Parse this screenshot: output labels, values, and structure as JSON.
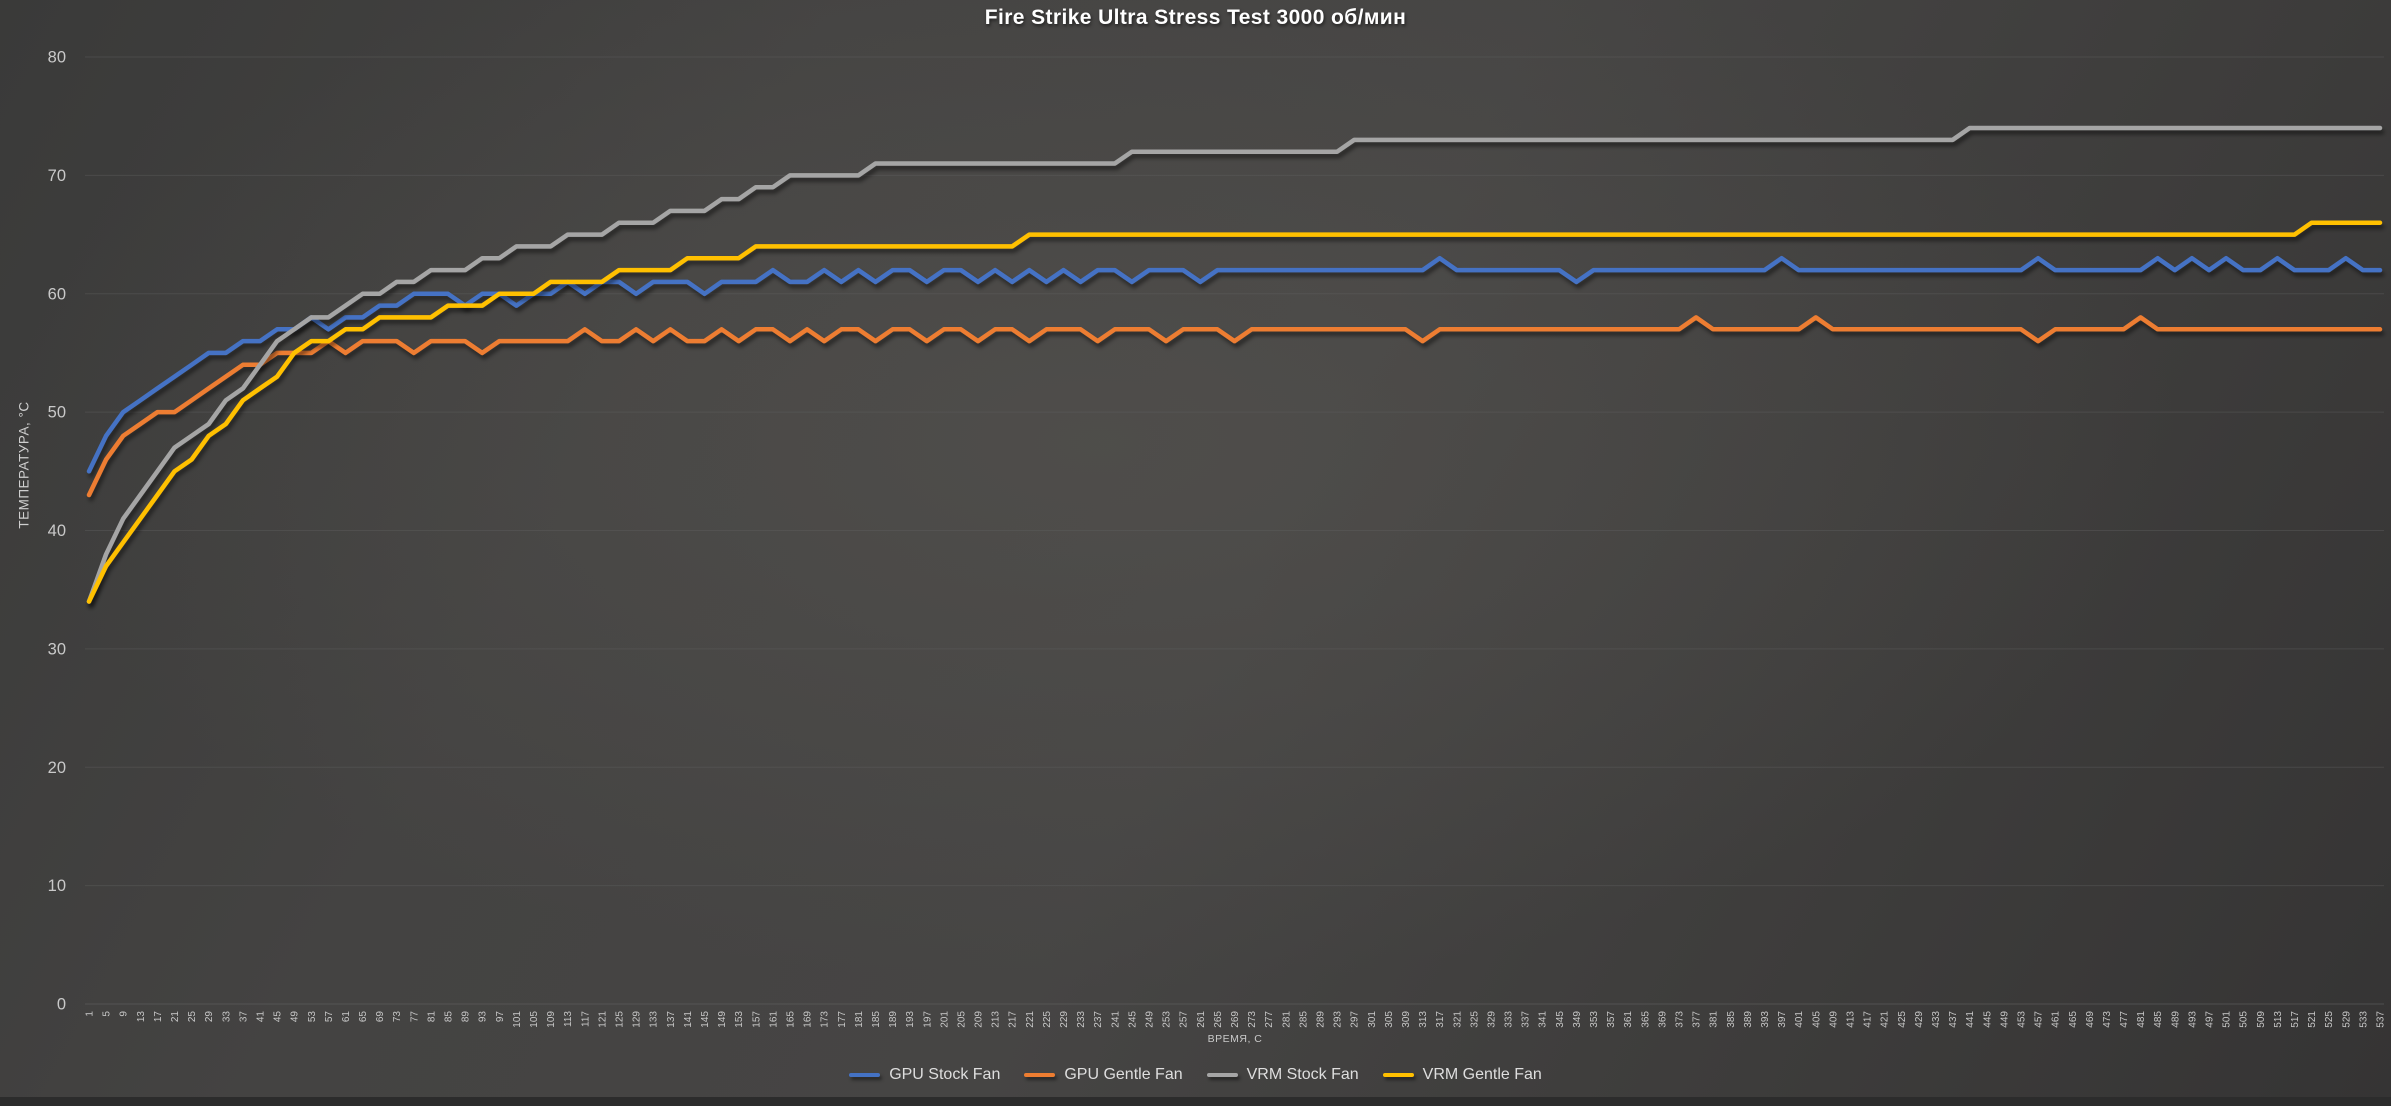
{
  "title": "Fire Strike Ultra Stress Test 3000 об/мин",
  "axes": {
    "y_title": "ТЕМПЕРАТУРА, °С",
    "x_title": "ВРЕМЯ, С",
    "y_ticks": [
      0,
      10,
      20,
      30,
      40,
      50,
      60,
      70,
      80
    ]
  },
  "colors": {
    "series_blue": "#4472C4",
    "series_orange": "#ED7D31",
    "series_gray": "#A5A5A5",
    "series_yellow": "#FFC000",
    "gridline": "#606060",
    "tick_text": "#c9c9c9",
    "title_text": "#ffffff"
  },
  "legend": {
    "position": "bottom",
    "items": [
      "GPU Stock Fan",
      "GPU Gentle Fan",
      "VRM Stock Fan",
      "VRM Gentle Fan"
    ]
  },
  "chart_data": {
    "type": "line",
    "title": "Fire Strike Ultra Stress Test 3000 об/мин",
    "xlabel": "ВРЕМЯ, С",
    "ylabel": "ТЕМПЕРАТУРА, °С",
    "ylim": [
      0,
      80
    ],
    "xlim": [
      1,
      537
    ],
    "grid": "horizontal",
    "legend_position": "bottom",
    "x": [
      1,
      5,
      9,
      13,
      17,
      21,
      25,
      29,
      33,
      37,
      41,
      45,
      49,
      53,
      57,
      61,
      65,
      69,
      73,
      77,
      81,
      85,
      89,
      93,
      97,
      101,
      105,
      109,
      113,
      117,
      121,
      125,
      129,
      133,
      137,
      141,
      145,
      149,
      153,
      157,
      161,
      165,
      169,
      173,
      177,
      181,
      185,
      189,
      193,
      197,
      201,
      205,
      209,
      213,
      217,
      221,
      225,
      229,
      233,
      237,
      241,
      245,
      249,
      253,
      257,
      261,
      265,
      269,
      273,
      277,
      281,
      285,
      289,
      293,
      297,
      301,
      305,
      309,
      313,
      317,
      321,
      325,
      329,
      333,
      337,
      341,
      345,
      349,
      353,
      357,
      361,
      365,
      369,
      373,
      377,
      381,
      385,
      389,
      393,
      397,
      401,
      405,
      409,
      413,
      417,
      421,
      425,
      429,
      433,
      437,
      441,
      445,
      449,
      453,
      457,
      461,
      465,
      469,
      473,
      477,
      481,
      485,
      489,
      493,
      497,
      501,
      505,
      509,
      513,
      517,
      521,
      525,
      529,
      533,
      537
    ],
    "series": [
      {
        "name": "GPU Stock Fan",
        "color": "#4472C4",
        "values": [
          45,
          48,
          50,
          51,
          52,
          53,
          54,
          55,
          55,
          56,
          56,
          57,
          57,
          58,
          57,
          58,
          58,
          59,
          59,
          60,
          60,
          60,
          59,
          60,
          60,
          59,
          60,
          60,
          61,
          60,
          61,
          61,
          60,
          61,
          61,
          61,
          60,
          61,
          61,
          61,
          62,
          61,
          61,
          62,
          61,
          62,
          61,
          62,
          62,
          61,
          62,
          62,
          61,
          62,
          61,
          62,
          61,
          62,
          61,
          62,
          62,
          61,
          62,
          62,
          62,
          61,
          62,
          62,
          62,
          62,
          62,
          62,
          62,
          62,
          62,
          62,
          62,
          62,
          62,
          63,
          62,
          62,
          62,
          62,
          62,
          62,
          62,
          61,
          62,
          62,
          62,
          62,
          62,
          62,
          62,
          62,
          62,
          62,
          62,
          63,
          62,
          62,
          62,
          62,
          62,
          62,
          62,
          62,
          62,
          62,
          62,
          62,
          62,
          62,
          63,
          62,
          62,
          62,
          62,
          62,
          62,
          63,
          62,
          63,
          62,
          63,
          62,
          62,
          63,
          62,
          62,
          62,
          63,
          62,
          62
        ]
      },
      {
        "name": "GPU Gentle Fan",
        "color": "#ED7D31",
        "values": [
          43,
          46,
          48,
          49,
          50,
          50,
          51,
          52,
          53,
          54,
          54,
          55,
          55,
          55,
          56,
          55,
          56,
          56,
          56,
          55,
          56,
          56,
          56,
          55,
          56,
          56,
          56,
          56,
          56,
          57,
          56,
          56,
          57,
          56,
          57,
          56,
          56,
          57,
          56,
          57,
          57,
          56,
          57,
          56,
          57,
          57,
          56,
          57,
          57,
          56,
          57,
          57,
          56,
          57,
          57,
          56,
          57,
          57,
          57,
          56,
          57,
          57,
          57,
          56,
          57,
          57,
          57,
          56,
          57,
          57,
          57,
          57,
          57,
          57,
          57,
          57,
          57,
          57,
          56,
          57,
          57,
          57,
          57,
          57,
          57,
          57,
          57,
          57,
          57,
          57,
          57,
          57,
          57,
          57,
          58,
          57,
          57,
          57,
          57,
          57,
          57,
          58,
          57,
          57,
          57,
          57,
          57,
          57,
          57,
          57,
          57,
          57,
          57,
          57,
          56,
          57,
          57,
          57,
          57,
          57,
          58,
          57,
          57,
          57,
          57,
          57,
          57,
          57,
          57,
          57,
          57,
          57,
          57,
          57,
          57
        ]
      },
      {
        "name": "VRM Stock Fan",
        "color": "#A5A5A5",
        "values": [
          34,
          38,
          41,
          43,
          45,
          47,
          48,
          49,
          51,
          52,
          54,
          56,
          57,
          58,
          58,
          59,
          60,
          60,
          61,
          61,
          62,
          62,
          62,
          63,
          63,
          64,
          64,
          64,
          65,
          65,
          65,
          66,
          66,
          66,
          67,
          67,
          67,
          68,
          68,
          69,
          69,
          70,
          70,
          70,
          70,
          70,
          71,
          71,
          71,
          71,
          71,
          71,
          71,
          71,
          71,
          71,
          71,
          71,
          71,
          71,
          71,
          72,
          72,
          72,
          72,
          72,
          72,
          72,
          72,
          72,
          72,
          72,
          72,
          72,
          73,
          73,
          73,
          73,
          73,
          73,
          73,
          73,
          73,
          73,
          73,
          73,
          73,
          73,
          73,
          73,
          73,
          73,
          73,
          73,
          73,
          73,
          73,
          73,
          73,
          73,
          73,
          73,
          73,
          73,
          73,
          73,
          73,
          73,
          73,
          73,
          74,
          74,
          74,
          74,
          74,
          74,
          74,
          74,
          74,
          74,
          74,
          74,
          74,
          74,
          74,
          74,
          74,
          74,
          74,
          74,
          74,
          74,
          74,
          74,
          74
        ]
      },
      {
        "name": "VRM Gentle Fan",
        "color": "#FFC000",
        "values": [
          34,
          37,
          39,
          41,
          43,
          45,
          46,
          48,
          49,
          51,
          52,
          53,
          55,
          56,
          56,
          57,
          57,
          58,
          58,
          58,
          58,
          59,
          59,
          59,
          60,
          60,
          60,
          61,
          61,
          61,
          61,
          62,
          62,
          62,
          62,
          63,
          63,
          63,
          63,
          64,
          64,
          64,
          64,
          64,
          64,
          64,
          64,
          64,
          64,
          64,
          64,
          64,
          64,
          64,
          64,
          65,
          65,
          65,
          65,
          65,
          65,
          65,
          65,
          65,
          65,
          65,
          65,
          65,
          65,
          65,
          65,
          65,
          65,
          65,
          65,
          65,
          65,
          65,
          65,
          65,
          65,
          65,
          65,
          65,
          65,
          65,
          65,
          65,
          65,
          65,
          65,
          65,
          65,
          65,
          65,
          65,
          65,
          65,
          65,
          65,
          65,
          65,
          65,
          65,
          65,
          65,
          65,
          65,
          65,
          65,
          65,
          65,
          65,
          65,
          65,
          65,
          65,
          65,
          65,
          65,
          65,
          65,
          65,
          65,
          65,
          65,
          65,
          65,
          65,
          65,
          66,
          66,
          66,
          66,
          66
        ]
      }
    ]
  }
}
